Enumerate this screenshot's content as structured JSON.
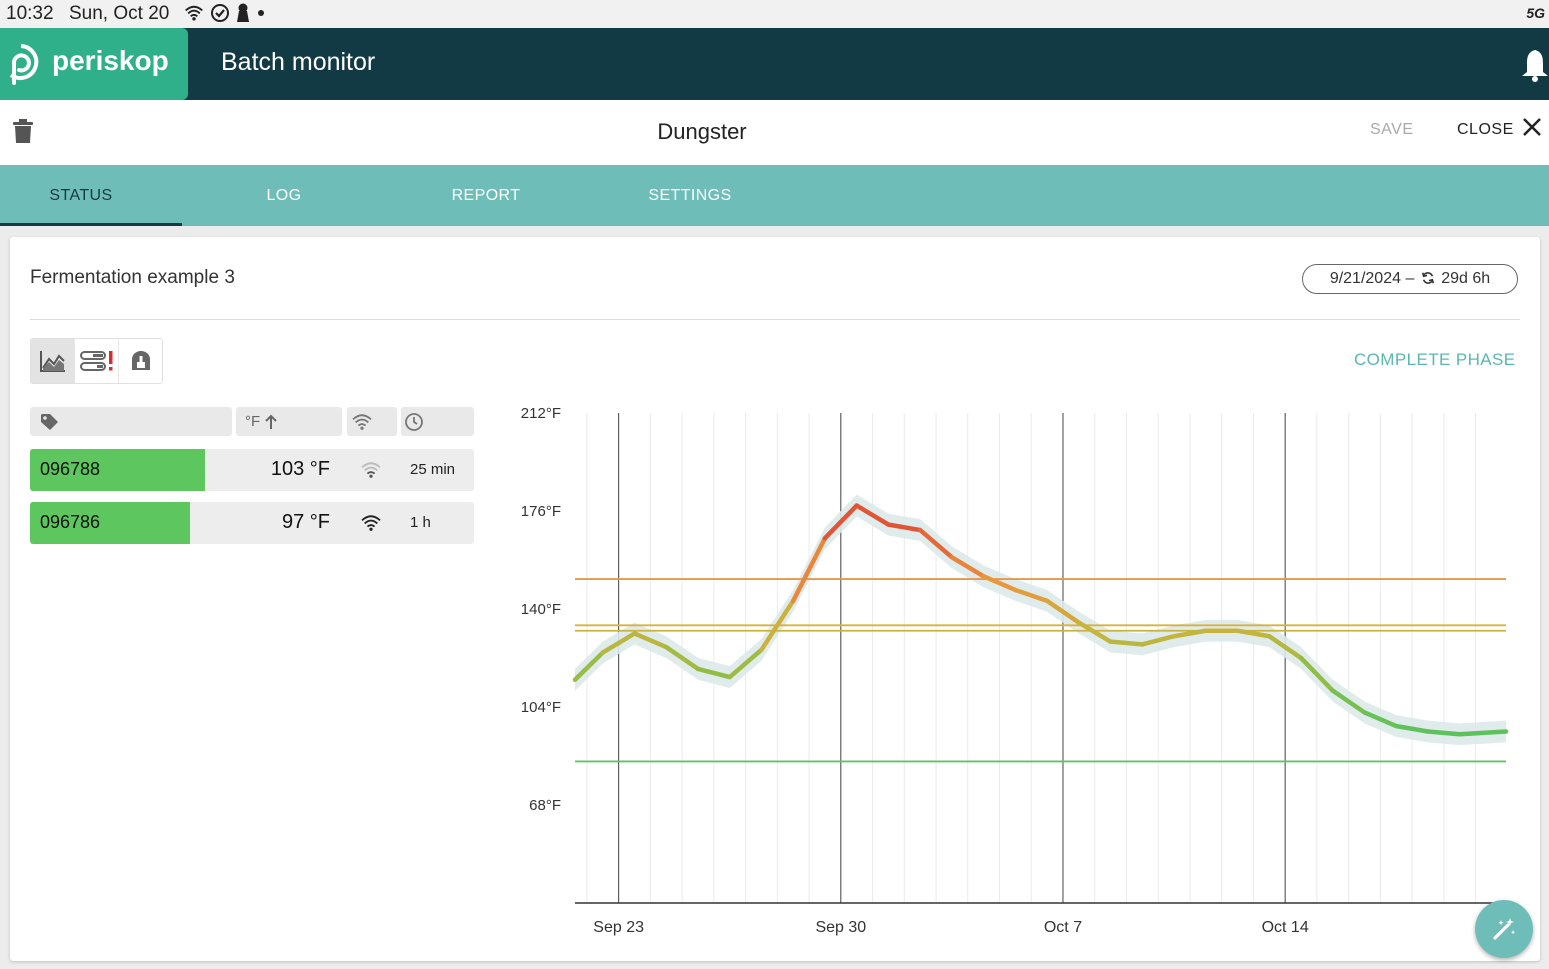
{
  "status_bar": {
    "time": "10:32",
    "date": "Sun, Oct 20",
    "network": "5G"
  },
  "app": {
    "brand": "periskop",
    "title": "Batch monitor"
  },
  "toolbar": {
    "doc_title": "Dungster",
    "save_label": "SAVE",
    "close_label": "CLOSE"
  },
  "tabs": [
    {
      "label": "STATUS",
      "active": true
    },
    {
      "label": "LOG",
      "active": false
    },
    {
      "label": "REPORT",
      "active": false
    },
    {
      "label": "SETTINGS",
      "active": false
    }
  ],
  "card": {
    "title": "Fermentation example 3",
    "date_range_start": "9/21/2024 –",
    "duration": "29d 6h",
    "complete_phase_label": "COMPLETE PHASE"
  },
  "sensor_table": {
    "temp_header": "°F",
    "rows": [
      {
        "id": "096788",
        "temp": "103 °F",
        "last_seen": "25 min"
      },
      {
        "id": "096786",
        "temp": "97 °F",
        "last_seen": "1 h"
      }
    ]
  },
  "colors": {
    "brand": "#2fb08a",
    "appbar": "#123a45",
    "tabs": "#6fbdb8",
    "sensor_ok": "#5ec65f",
    "threshold_high": "#e8964a",
    "threshold_mid_1": "#d9b23a",
    "threshold_mid_2": "#c9b33b",
    "threshold_low": "#5ec65f"
  },
  "chart_data": {
    "type": "line",
    "y_ticks": [
      "212°F",
      "176°F",
      "140°F",
      "104°F",
      "68°F"
    ],
    "ylim": [
      32,
      212
    ],
    "x_ticks": [
      "Sep 23",
      "Sep 30",
      "Oct 7",
      "Oct 14"
    ],
    "xlim": [
      "2024-09-21T15:00",
      "2024-10-20T23:00"
    ],
    "grid": true,
    "thresholds_F": [
      151,
      134,
      132,
      84
    ],
    "series": [
      {
        "x": [
          "2024-09-21T15:00",
          "2024-09-22T12:00",
          "2024-09-23T12:00",
          "2024-09-24T12:00",
          "2024-09-25T12:00",
          "2024-09-26T12:00",
          "2024-09-27T12:00",
          "2024-09-28T12:00",
          "2024-09-29T12:00",
          "2024-09-30T12:00",
          "2024-10-01T12:00",
          "2024-10-02T12:00",
          "2024-10-03T12:00",
          "2024-10-04T12:00",
          "2024-10-05T12:00",
          "2024-10-06T12:00",
          "2024-10-07T12:00",
          "2024-10-08T12:00",
          "2024-10-09T12:00",
          "2024-10-10T12:00",
          "2024-10-11T12:00",
          "2024-10-12T12:00",
          "2024-10-13T12:00",
          "2024-10-14T12:00",
          "2024-10-15T12:00",
          "2024-10-16T12:00",
          "2024-10-17T12:00",
          "2024-10-18T12:00",
          "2024-10-19T12:00",
          "2024-10-20T23:00"
        ],
        "values": [
          114,
          124,
          131,
          126,
          118,
          115,
          125,
          143,
          166,
          178,
          171,
          169,
          159,
          152,
          147,
          143,
          135,
          128,
          127,
          130,
          132,
          132,
          130,
          122,
          110,
          102,
          97,
          95,
          94,
          95
        ],
        "band": 4
      }
    ]
  }
}
